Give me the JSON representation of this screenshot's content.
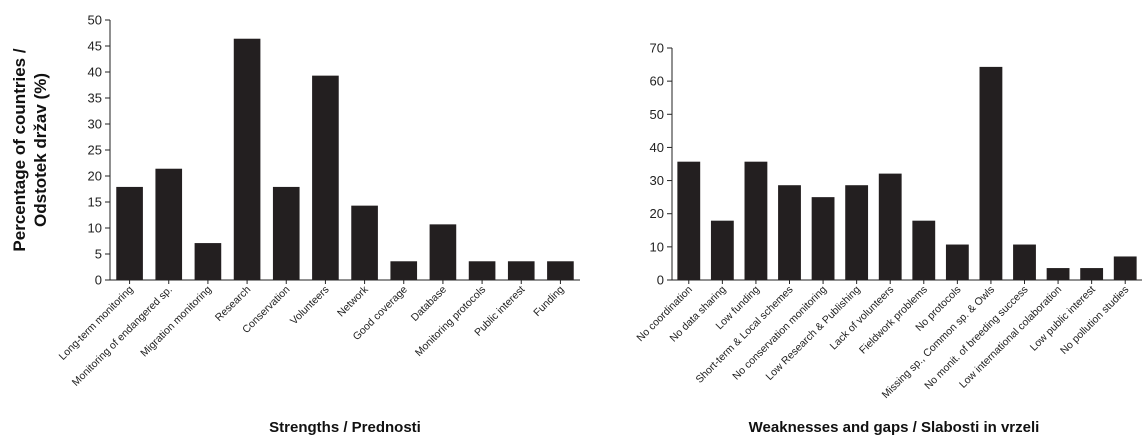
{
  "chart_data": [
    {
      "type": "bar",
      "xlabel": "Strengths / Prednosti",
      "ylabel_lines": [
        "Percentage of countries /",
        "Odstotek držav (%)"
      ],
      "ylim": [
        0,
        50
      ],
      "yticks": [
        0,
        5,
        10,
        15,
        20,
        25,
        30,
        35,
        40,
        45,
        50
      ],
      "grid": false,
      "bar_color": "#231f20",
      "categories": [
        "Long-term monitoring",
        "Monitoring of endangered sp.",
        "Migration monitoring",
        "Research",
        "Conservation",
        "Volunteers",
        "Network",
        "Good coverage",
        "Database",
        "Monitoring protocols",
        "Public interest",
        "Funding"
      ],
      "values": [
        17.9,
        21.4,
        7.1,
        46.4,
        17.9,
        39.3,
        14.3,
        3.6,
        10.7,
        3.6,
        3.6,
        3.6
      ]
    },
    {
      "type": "bar",
      "xlabel": "Weaknesses and gaps / Slabosti in vrzeli",
      "ylim": [
        0,
        70
      ],
      "yticks": [
        0,
        10,
        20,
        30,
        40,
        50,
        60,
        70
      ],
      "grid": false,
      "bar_color": "#231f20",
      "categories": [
        "No coordination",
        "No data sharing",
        "Low funding",
        "Short-term & Local schemes",
        "No conservation monitoring",
        "Low Research & Publishing",
        "Lack of volunteers",
        "Fieldwork problems",
        "No protocols",
        "Missing sp., Common sp. & Owls",
        "No monit. of breeding success",
        "Low international colaboration",
        "Low public interest",
        "No pollution studies"
      ],
      "values": [
        35.7,
        17.9,
        35.7,
        28.6,
        25.0,
        28.6,
        32.1,
        17.9,
        10.7,
        64.3,
        10.7,
        3.6,
        3.6,
        7.1
      ]
    }
  ]
}
